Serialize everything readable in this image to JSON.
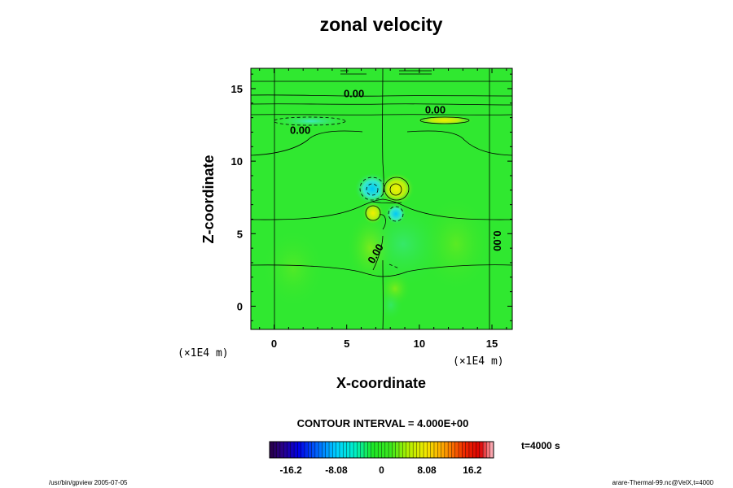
{
  "chart_data": {
    "type": "heatmap",
    "title": "zonal velocity",
    "xlabel": "X-coordinate",
    "ylabel": "Z-coordinate",
    "x_unit": "(×1E4 m)",
    "y_unit": "(×1E4 m)",
    "xlim": [
      -1.6,
      16.4
    ],
    "ylim": [
      -1.6,
      16.4
    ],
    "x_ticks": [
      {
        "value": 0,
        "label": "0"
      },
      {
        "value": 5,
        "label": "5"
      },
      {
        "value": 10,
        "label": "10"
      },
      {
        "value": 15,
        "label": "15"
      }
    ],
    "y_ticks": [
      {
        "value": 0,
        "label": "0"
      },
      {
        "value": 5,
        "label": "5"
      },
      {
        "value": 10,
        "label": "10"
      },
      {
        "value": 15,
        "label": "15"
      }
    ],
    "contour_interval_text": "CONTOUR INTERVAL = 4.000E+00",
    "contour_labels": [
      {
        "text": "0.00",
        "x": 5.5,
        "y": 14.4,
        "rotate": 0
      },
      {
        "text": "0.00",
        "x": 11.1,
        "y": 13.3,
        "rotate": 0
      },
      {
        "text": "0.00",
        "x": 1.8,
        "y": 11.9,
        "rotate": 0
      },
      {
        "text": "0.00",
        "x": 15.1,
        "y": 4.5,
        "rotate": 90
      },
      {
        "text": "0.00",
        "x": 7.2,
        "y": 3.5,
        "rotate": -60
      }
    ],
    "features": [
      {
        "kind": "negative",
        "x": 6.6,
        "y": 8.0,
        "peak": -12
      },
      {
        "kind": "positive",
        "x": 8.2,
        "y": 8.0,
        "peak": 12
      },
      {
        "kind": "positive",
        "x": 6.7,
        "y": 6.4,
        "peak": 8
      },
      {
        "kind": "negative",
        "x": 8.3,
        "y": 6.3,
        "peak": -8
      },
      {
        "kind": "negative",
        "x": 3.0,
        "y": 12.8,
        "peak": -4
      },
      {
        "kind": "positive",
        "x": 11.6,
        "y": 12.8,
        "peak": 6
      }
    ],
    "colorbar": {
      "range": [
        -20,
        20
      ],
      "ticks": [
        {
          "value": -16.2,
          "label": "-16.2"
        },
        {
          "value": -8.08,
          "label": "-8.08"
        },
        {
          "value": 0,
          "label": "0"
        },
        {
          "value": 8.08,
          "label": "8.08"
        },
        {
          "value": 16.2,
          "label": "16.2"
        }
      ]
    },
    "time_label": "t=4000 s"
  },
  "footer": {
    "left": "/usr/bin/gpview 2005-07-05",
    "right": "arare-Thermal-99.nc@VelX,t=4000"
  },
  "colors": {
    "background_field": "#2ee82e",
    "positive": "#f2ee00",
    "negative": "#00e4f0",
    "contour": "#000000"
  }
}
